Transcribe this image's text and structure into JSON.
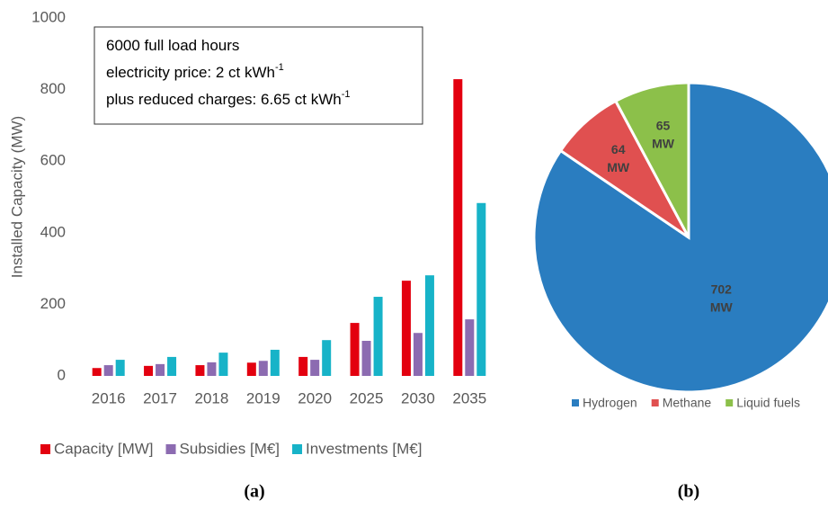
{
  "chart_data": [
    {
      "type": "bar",
      "y_label": "Installed Capacity (MW)",
      "categories": [
        "2016",
        "2017",
        "2018",
        "2019",
        "2020",
        "2025",
        "2030",
        "2035"
      ],
      "series": [
        {
          "name": "Capacity [MW]",
          "color": "#e3000f",
          "values": [
            22,
            28,
            30,
            37,
            53,
            148,
            266,
            829
          ]
        },
        {
          "name": "Subsidies [M€]",
          "color": "#8c6bb1",
          "values": [
            30,
            33,
            38,
            42,
            45,
            98,
            120,
            158
          ]
        },
        {
          "name": "Investments [M€]",
          "color": "#17b3c8",
          "values": [
            45,
            53,
            65,
            73,
            100,
            221,
            281,
            483
          ]
        }
      ],
      "ylim": [
        0,
        1000
      ],
      "yticks": [
        0,
        200,
        400,
        600,
        800,
        1000
      ],
      "grid": false,
      "annotation": [
        {
          "text": "6000 full load hours"
        },
        {
          "text": "electricity price: 2 ct kWh",
          "sup": "-1"
        },
        {
          "text": "plus reduced charges: 6.65 ct kWh",
          "sup": "-1"
        }
      ],
      "caption": "(a)"
    },
    {
      "type": "pie",
      "categories": [
        "Hydrogen",
        "Methane",
        "Liquid fuels"
      ],
      "values": [
        702,
        64,
        65
      ],
      "value_labels": [
        "702 MW",
        "64 MW",
        "65 MW"
      ],
      "colors": [
        "#2a7dc0",
        "#e05050",
        "#8cc04a"
      ],
      "caption": "(b)"
    }
  ]
}
